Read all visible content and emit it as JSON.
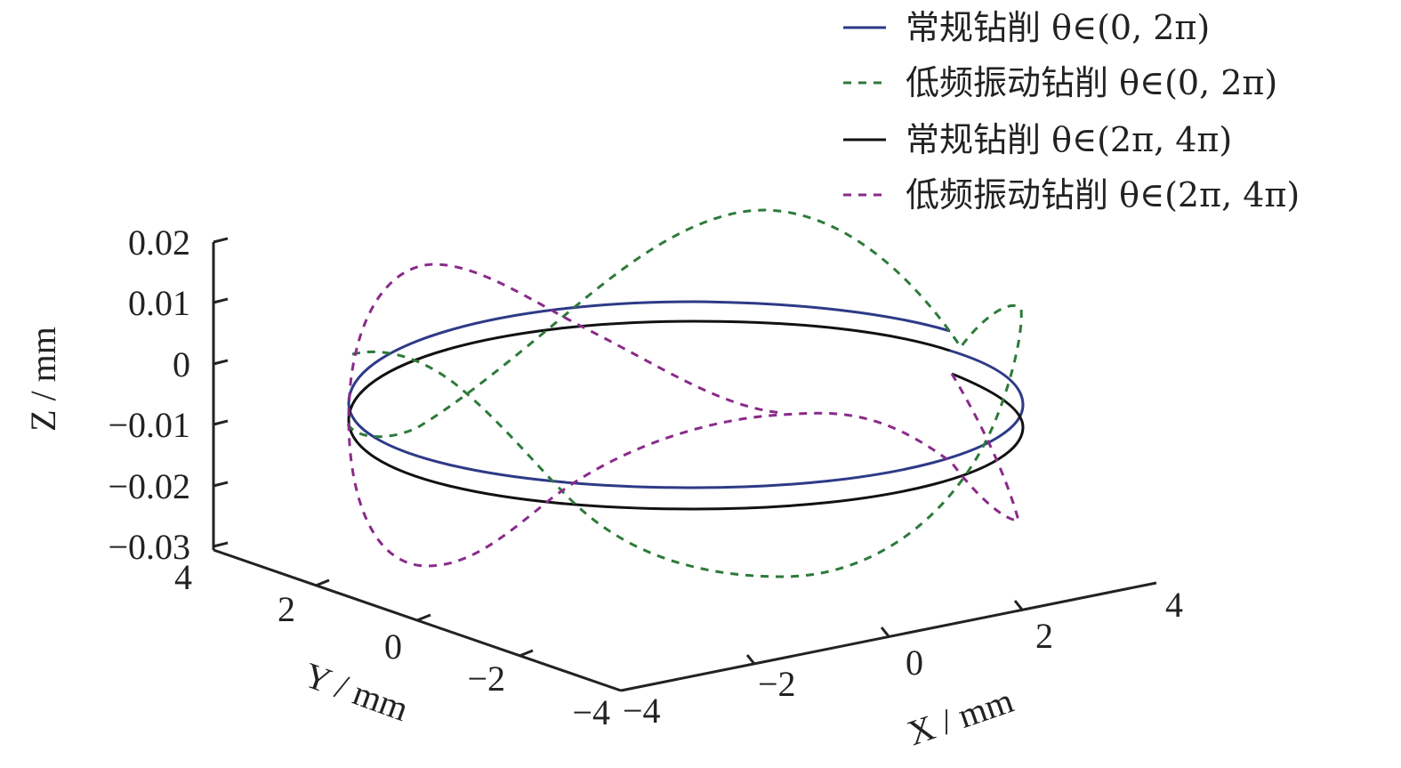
{
  "chart_data": {
    "type": "line",
    "projection": "3d",
    "xlabel": "X / mm",
    "ylabel": "Y / mm",
    "zlabel": "Z / mm",
    "xlim": [
      -4,
      4
    ],
    "ylim": [
      -4,
      4
    ],
    "zlim": [
      -0.03,
      0.02
    ],
    "x_ticks": [
      "−4",
      "−2",
      "0",
      "2",
      "4"
    ],
    "y_ticks": [
      "4",
      "2",
      "0",
      "−2",
      "−4"
    ],
    "z_ticks": [
      "0.02",
      "0.01",
      "0",
      "−0.01",
      "−0.02",
      "−0.03"
    ],
    "legend_position": "top-right",
    "legend": [
      {
        "label": "常规钻削 θ∈(0, 2π)",
        "color": "#2e3a87",
        "dash": "solid"
      },
      {
        "label": "低频振动钻削 θ∈(0, 2π)",
        "color": "#2d7a3a",
        "dash": "dashed"
      },
      {
        "label": "常规钻削 θ∈(2π, 4π)",
        "color": "#111111",
        "dash": "solid"
      },
      {
        "label": "低频振动钻削 θ∈(2π, 4π)",
        "color": "#8a2a8a",
        "dash": "dashed"
      }
    ]
  }
}
